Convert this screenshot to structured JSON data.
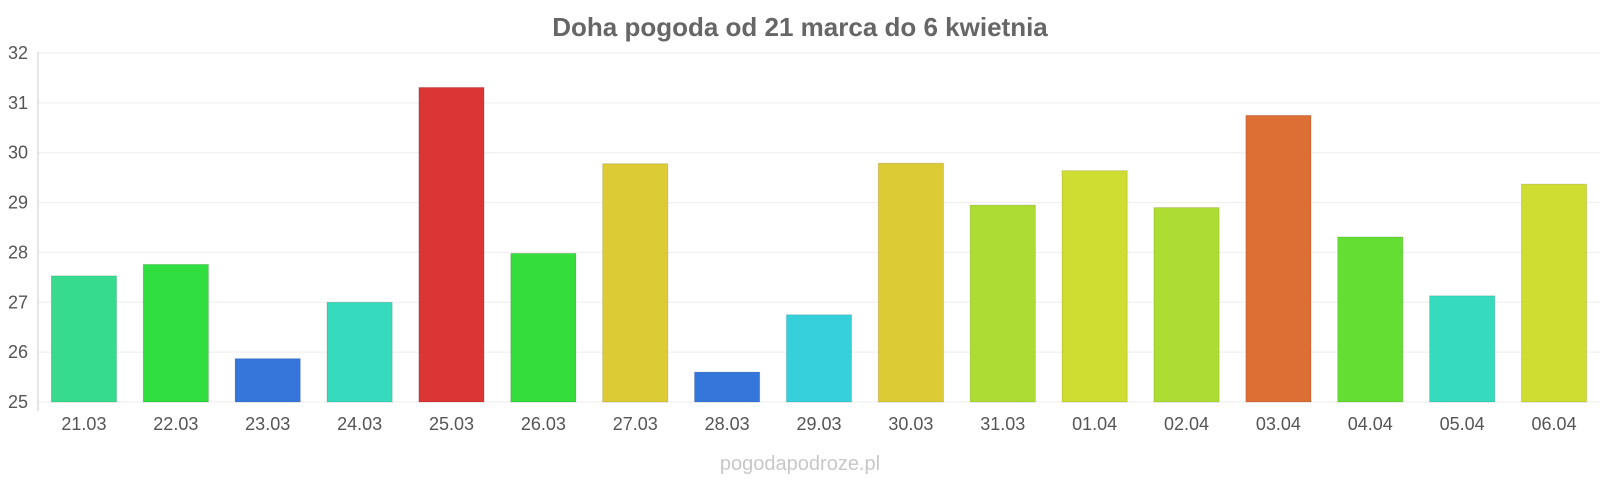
{
  "chart_data": {
    "type": "bar",
    "title": "Doha pogoda od 21 marca do 6 kwietnia",
    "categories": [
      "21.03",
      "22.03",
      "23.03",
      "24.03",
      "25.03",
      "26.03",
      "27.03",
      "28.03",
      "29.03",
      "30.03",
      "31.03",
      "01.04",
      "02.04",
      "03.04",
      "04.04",
      "05.04",
      "06.04"
    ],
    "values": [
      27.53,
      27.76,
      25.87,
      27.0,
      31.31,
      27.98,
      29.78,
      25.6,
      26.75,
      29.79,
      28.95,
      29.64,
      28.9,
      30.75,
      28.31,
      27.13,
      29.37
    ],
    "colors": [
      "#37db8d",
      "#30de3f",
      "#3576db",
      "#36dbbd",
      "#dc3535",
      "#34dd3b",
      "#dccb34",
      "#3576db",
      "#36d0db",
      "#dccb34",
      "#addd33",
      "#cfdd32",
      "#addd33",
      "#dd6e34",
      "#64de33",
      "#36dbbd",
      "#cfdd32"
    ],
    "xlabel": "",
    "ylabel": "",
    "ylim": [
      25,
      32
    ],
    "yticks": [
      25,
      26,
      27,
      28,
      29,
      30,
      31,
      32
    ],
    "grid": true,
    "watermark": "pogodapodroze.pl"
  }
}
